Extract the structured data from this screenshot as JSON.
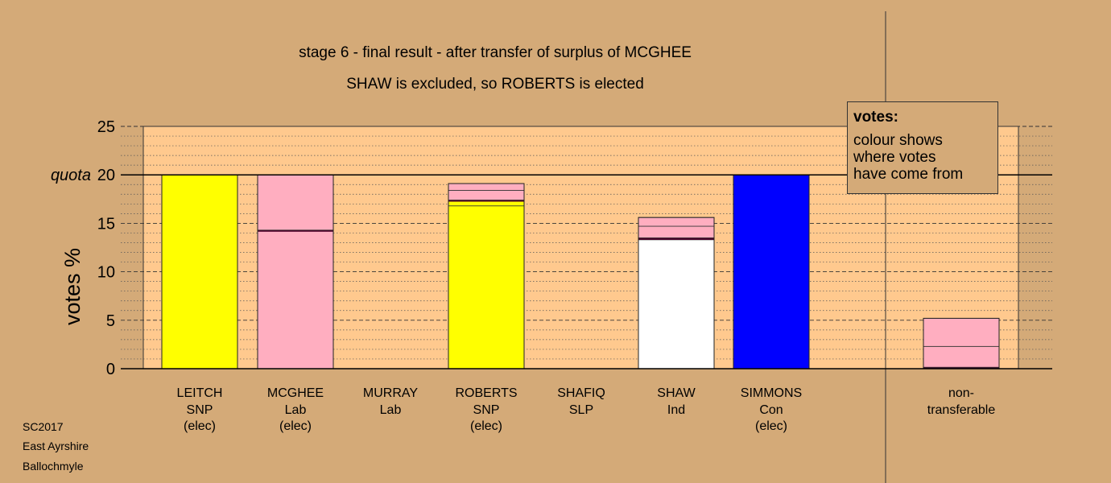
{
  "title_line1": "stage 6 - final result - after transfer of surplus of MCGHEE",
  "title_line2": "SHAW is excluded, so ROBERTS is elected",
  "legend": {
    "heading": "votes:",
    "lines": [
      "colour shows",
      "where votes",
      "have come from"
    ]
  },
  "footer": [
    "SC2017",
    "East Ayrshire",
    "Ballochmyle"
  ],
  "chart_data": {
    "type": "bar",
    "stacked": true,
    "ylabel": "votes %",
    "quota_label": "quota",
    "quota": 20,
    "ylim": [
      0,
      25
    ],
    "yticks": [
      0,
      5,
      10,
      15,
      20,
      25
    ],
    "grid": "dashed major at 5, dotted minor at 1",
    "colors": {
      "SNP": "#ffff00",
      "Lab": "#ffaec0",
      "Ind": "#ffffff",
      "Con": "#0000ff",
      "plot_bg": "#ffc98e",
      "page_bg": "#d4aa78"
    },
    "categories": [
      {
        "lines": [
          "LEITCH",
          "SNP",
          "(elec)"
        ],
        "segments": [
          {
            "value": 20,
            "color": "#ffff00"
          }
        ]
      },
      {
        "lines": [
          "MCGHEE",
          "Lab",
          "(elec)"
        ],
        "segments": [
          {
            "value": 14.2,
            "color": "#ffaec0"
          },
          {
            "value": 0.1,
            "color": "#4b0028"
          },
          {
            "value": 5.7,
            "color": "#ffaec0"
          }
        ]
      },
      {
        "lines": [
          "MURRAY",
          "Lab"
        ],
        "segments": []
      },
      {
        "lines": [
          "ROBERTS",
          "SNP",
          "(elec)"
        ],
        "segments": [
          {
            "value": 16.8,
            "color": "#ffff00"
          },
          {
            "value": 0.5,
            "color": "#ffff00"
          },
          {
            "value": 0.1,
            "color": "#4b0028"
          },
          {
            "value": 1.0,
            "color": "#ffaec0"
          },
          {
            "value": 0.7,
            "color": "#ffaec0"
          }
        ]
      },
      {
        "lines": [
          "SHAFIQ",
          "SLP"
        ],
        "segments": []
      },
      {
        "lines": [
          "SHAW",
          "Ind"
        ],
        "segments": [
          {
            "value": 13.3,
            "color": "#ffffff"
          },
          {
            "value": 0.2,
            "color": "#4b0028"
          },
          {
            "value": 1.2,
            "color": "#ffaec0"
          },
          {
            "value": 0.9,
            "color": "#ffaec0"
          }
        ]
      },
      {
        "lines": [
          "SIMMONS",
          "Con",
          "(elec)"
        ],
        "segments": [
          {
            "value": 20,
            "color": "#0000ff"
          }
        ]
      },
      {
        "lines": [
          "non-",
          "transferable"
        ],
        "segments": [
          {
            "value": 0.15,
            "color": "#4b0028"
          },
          {
            "value": 2.15,
            "color": "#ffaec0"
          },
          {
            "value": 2.9,
            "color": "#ffaec0"
          }
        ],
        "separate": true
      }
    ]
  }
}
